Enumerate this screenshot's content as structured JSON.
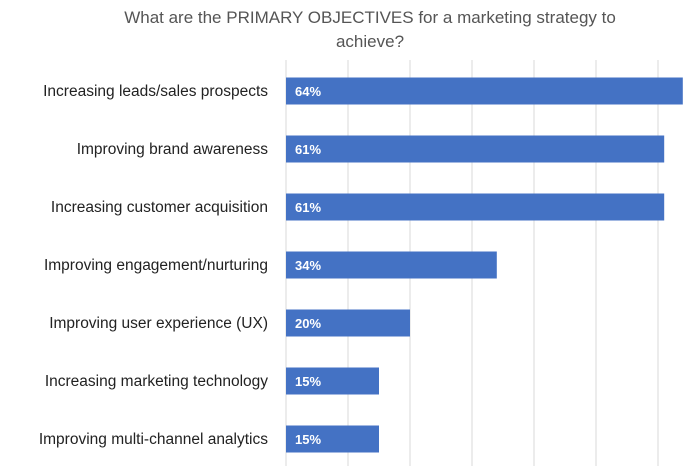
{
  "chart_data": {
    "type": "bar",
    "orientation": "horizontal",
    "title_lines": [
      "What are the PRIMARY OBJECTIVES for a marketing strategy to",
      "achieve?"
    ],
    "categories": [
      "Increasing leads/sales prospects",
      "Improving brand awareness",
      "Increasing customer acquisition",
      "Improving engagement/nurturing",
      "Improving user experience (UX)",
      "Increasing marketing technology",
      "Improving multi-channel analytics"
    ],
    "values": [
      64,
      61,
      61,
      34,
      20,
      15,
      15
    ],
    "value_labels": [
      "64%",
      "61%",
      "61%",
      "34%",
      "20%",
      "15%",
      "15%"
    ],
    "xlim": [
      0,
      65
    ],
    "grid": true,
    "legend": "none",
    "bar_color": "#4472c4"
  }
}
